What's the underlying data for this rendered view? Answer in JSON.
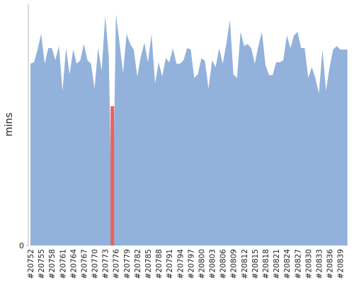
{
  "chart_data": {
    "type": "area",
    "y_label": "mins",
    "categories": [
      "#20752",
      null,
      null,
      "#20755",
      null,
      null,
      "#20758",
      null,
      null,
      "#20761",
      null,
      null,
      "#20764",
      null,
      null,
      "#20767",
      null,
      null,
      "#20770",
      null,
      null,
      "#20773",
      null,
      null,
      "#20776",
      null,
      null,
      "#20779",
      null,
      null,
      "#20782",
      null,
      null,
      "#20785",
      null,
      null,
      "#20788",
      null,
      null,
      "#20791",
      null,
      null,
      "#20794",
      null,
      null,
      "#20797",
      null,
      null,
      "#20800",
      null,
      null,
      "#20803",
      null,
      null,
      "#20806",
      null,
      null,
      "#20809",
      null,
      null,
      "#20812",
      null,
      null,
      "#20815",
      null,
      null,
      "#20818",
      null,
      null,
      "#20821",
      null,
      null,
      "#20824",
      null,
      null,
      "#20827",
      null,
      null,
      "#20830",
      null,
      null,
      "#20833",
      null,
      null,
      "#20836",
      null,
      null,
      "#20839",
      null,
      null
    ],
    "series": [
      {
        "color": "#92b2dc",
        "values": [
          52.6,
          53.0,
          56.7,
          61.2,
          52.6,
          57.1,
          57.1,
          53.6,
          57.7,
          44.8,
          57.1,
          49.5,
          56.7,
          52.6,
          53.6,
          58.3,
          53.6,
          52.6,
          45.4,
          57.1,
          50.6,
          66.5,
          54.7,
          0,
          66.9,
          58.7,
          49.9,
          61.2,
          58.3,
          56.7,
          48.9,
          54.7,
          58.7,
          53.0,
          61.2,
          46.9,
          53.0,
          48.9,
          54.2,
          53.0,
          57.1,
          52.6,
          52.6,
          53.6,
          57.1,
          56.7,
          48.5,
          49.5,
          54.2,
          53.4,
          45.4,
          53.6,
          51.6,
          57.1,
          52.6,
          58.3,
          65.3,
          49.5,
          48.5,
          61.8,
          57.7,
          58.3,
          57.1,
          52.6,
          57.7,
          61.8,
          52.2,
          49.3,
          49.3,
          53.0,
          53.0,
          53.6,
          60.8,
          57.1,
          60.8,
          61.8,
          57.1,
          57.1,
          48.5,
          51.6,
          48.5,
          44.0,
          56.7,
          44.8,
          51.6,
          56.7,
          57.7,
          56.7,
          56.7,
          56.7
        ]
      },
      {
        "color": "#e8635f",
        "values": [
          null,
          null,
          null,
          null,
          null,
          null,
          null,
          null,
          null,
          null,
          null,
          null,
          null,
          null,
          null,
          null,
          null,
          null,
          null,
          null,
          null,
          null,
          null,
          40.3,
          null,
          null,
          null,
          null,
          null,
          null,
          null,
          null,
          null,
          null,
          null,
          null,
          null,
          null,
          null,
          null,
          null,
          null,
          null,
          null,
          null,
          null,
          null,
          null,
          null,
          null,
          null,
          null,
          null,
          null,
          null,
          null,
          null,
          null,
          null,
          null,
          null,
          null,
          null,
          null,
          null,
          null,
          null,
          null,
          null,
          null,
          null,
          null,
          null,
          null,
          null,
          null,
          null,
          null,
          null,
          null,
          null,
          null,
          null,
          null,
          null,
          null,
          null,
          null,
          null,
          null
        ]
      }
    ],
    "ylim": [
      0,
      70
    ],
    "yticks": [
      0
    ]
  }
}
